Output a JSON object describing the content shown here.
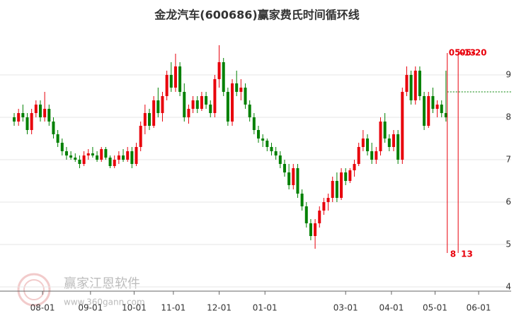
{
  "chart_data": {
    "type": "candlestick",
    "title": "金龙汽车(600686)赢家费氏时间循环线",
    "up_color": "#e8000b",
    "down_color": "#008000",
    "xlim": [
      -3.25,
      114.6
    ],
    "ylim": [
      3.9,
      10.1
    ],
    "yticks": [
      4,
      5,
      6,
      7,
      8,
      9
    ],
    "grid": true,
    "xticks": [
      {
        "value": 6.5,
        "label": "08-01"
      },
      {
        "value": 17.5,
        "label": "09-01"
      },
      {
        "value": 27.5,
        "label": "10-01"
      },
      {
        "value": 36.5,
        "label": "11-01"
      },
      {
        "value": 47,
        "label": "12-01"
      },
      {
        "value": 57.5,
        "label": "01-01"
      },
      {
        "value": 76,
        "label": "03-01"
      },
      {
        "value": 86.5,
        "label": "04-01"
      },
      {
        "value": 96.5,
        "label": "05-01"
      },
      {
        "value": 106.5,
        "label": "06-01"
      }
    ],
    "ohlc": [
      [
        8.0,
        8.1,
        7.8,
        7.9
      ],
      [
        7.9,
        8.2,
        7.8,
        8.1
      ],
      [
        8.1,
        8.3,
        7.9,
        8.0
      ],
      [
        8.0,
        8.1,
        7.6,
        7.7
      ],
      [
        7.7,
        8.2,
        7.6,
        8.1
      ],
      [
        8.1,
        8.4,
        8.0,
        8.3
      ],
      [
        8.3,
        8.4,
        7.9,
        8.0
      ],
      [
        8.0,
        8.6,
        7.9,
        8.2
      ],
      [
        8.2,
        8.3,
        7.8,
        7.9
      ],
      [
        7.9,
        8.0,
        7.5,
        7.6
      ],
      [
        7.6,
        7.7,
        7.3,
        7.4
      ],
      [
        7.4,
        7.5,
        7.1,
        7.2
      ],
      [
        7.2,
        7.3,
        7.0,
        7.1
      ],
      [
        7.1,
        7.2,
        7.0,
        7.05
      ],
      [
        7.05,
        7.15,
        6.95,
        7.0
      ],
      [
        7.0,
        7.1,
        6.8,
        6.9
      ],
      [
        6.9,
        7.2,
        6.85,
        7.1
      ],
      [
        7.1,
        7.25,
        7.0,
        7.15
      ],
      [
        7.15,
        7.3,
        7.05,
        7.1
      ],
      [
        7.1,
        7.2,
        6.95,
        7.0
      ],
      [
        7.0,
        7.3,
        6.95,
        7.25
      ],
      [
        7.25,
        7.3,
        7.0,
        7.05
      ],
      [
        7.05,
        7.1,
        6.8,
        6.85
      ],
      [
        6.85,
        7.1,
        6.8,
        7.0
      ],
      [
        7.0,
        7.2,
        6.9,
        7.1
      ],
      [
        7.1,
        7.25,
        6.95,
        7.0
      ],
      [
        7.0,
        7.3,
        6.95,
        7.2
      ],
      [
        7.2,
        7.3,
        6.8,
        6.9
      ],
      [
        6.9,
        7.4,
        6.85,
        7.3
      ],
      [
        7.3,
        7.9,
        7.2,
        7.8
      ],
      [
        7.8,
        8.3,
        7.6,
        8.1
      ],
      [
        8.1,
        8.2,
        7.7,
        7.8
      ],
      [
        7.8,
        8.5,
        7.75,
        8.4
      ],
      [
        8.4,
        8.7,
        8.0,
        8.1
      ],
      [
        8.1,
        8.6,
        7.9,
        8.5
      ],
      [
        8.5,
        9.1,
        8.4,
        9.0
      ],
      [
        9.0,
        9.3,
        8.6,
        8.7
      ],
      [
        8.7,
        9.5,
        8.6,
        9.2
      ],
      [
        9.2,
        9.3,
        8.5,
        8.6
      ],
      [
        8.6,
        8.8,
        7.9,
        8.0
      ],
      [
        8.0,
        8.3,
        7.85,
        8.2
      ],
      [
        8.2,
        8.5,
        8.1,
        8.4
      ],
      [
        8.4,
        8.5,
        8.1,
        8.2
      ],
      [
        8.2,
        8.6,
        8.15,
        8.5
      ],
      [
        8.5,
        8.6,
        8.2,
        8.3
      ],
      [
        8.3,
        8.4,
        8.0,
        8.1
      ],
      [
        8.1,
        9.0,
        8.0,
        8.9
      ],
      [
        8.9,
        9.7,
        8.7,
        9.3
      ],
      [
        9.3,
        9.4,
        8.5,
        8.6
      ],
      [
        8.6,
        8.7,
        7.8,
        7.9
      ],
      [
        7.9,
        8.9,
        7.8,
        8.8
      ],
      [
        8.8,
        9.1,
        8.5,
        8.6
      ],
      [
        8.6,
        8.9,
        8.4,
        8.7
      ],
      [
        8.7,
        8.8,
        8.2,
        8.3
      ],
      [
        8.3,
        8.4,
        7.9,
        8.0
      ],
      [
        8.0,
        8.1,
        7.6,
        7.7
      ],
      [
        7.7,
        7.8,
        7.4,
        7.5
      ],
      [
        7.5,
        7.6,
        7.3,
        7.45
      ],
      [
        7.45,
        7.5,
        7.2,
        7.3
      ],
      [
        7.3,
        7.4,
        7.1,
        7.2
      ],
      [
        7.2,
        7.3,
        7.0,
        7.1
      ],
      [
        7.1,
        7.2,
        6.8,
        6.9
      ],
      [
        6.9,
        7.0,
        6.6,
        6.7
      ],
      [
        6.7,
        6.9,
        6.3,
        6.4
      ],
      [
        6.4,
        6.9,
        6.3,
        6.8
      ],
      [
        6.8,
        6.9,
        6.1,
        6.2
      ],
      [
        6.2,
        6.3,
        5.8,
        5.9
      ],
      [
        5.9,
        6.0,
        5.4,
        5.5
      ],
      [
        5.5,
        5.6,
        5.1,
        5.2
      ],
      [
        5.2,
        5.6,
        4.9,
        5.5
      ],
      [
        5.5,
        5.9,
        5.4,
        5.8
      ],
      [
        5.8,
        6.1,
        5.7,
        6.0
      ],
      [
        6.0,
        6.2,
        5.8,
        6.1
      ],
      [
        6.1,
        6.6,
        6.0,
        6.5
      ],
      [
        6.5,
        6.7,
        6.0,
        6.1
      ],
      [
        6.1,
        6.8,
        6.05,
        6.7
      ],
      [
        6.7,
        6.8,
        6.4,
        6.5
      ],
      [
        6.5,
        6.8,
        6.45,
        6.75
      ],
      [
        6.75,
        7.0,
        6.6,
        6.9
      ],
      [
        6.9,
        7.4,
        6.85,
        7.3
      ],
      [
        7.3,
        7.7,
        7.2,
        7.5
      ],
      [
        7.5,
        7.6,
        7.1,
        7.2
      ],
      [
        7.2,
        7.4,
        6.9,
        7.0
      ],
      [
        7.0,
        7.3,
        6.9,
        7.2
      ],
      [
        7.2,
        8.0,
        7.1,
        7.9
      ],
      [
        7.9,
        8.1,
        7.4,
        7.5
      ],
      [
        7.5,
        7.6,
        7.2,
        7.3
      ],
      [
        7.3,
        7.7,
        7.2,
        7.6
      ],
      [
        7.6,
        7.7,
        6.9,
        7.0
      ],
      [
        7.0,
        8.7,
        6.9,
        8.6
      ],
      [
        8.6,
        9.2,
        8.5,
        9.0
      ],
      [
        9.0,
        9.1,
        8.3,
        8.4
      ],
      [
        8.4,
        9.2,
        8.3,
        9.1
      ],
      [
        9.1,
        9.2,
        8.4,
        8.5
      ],
      [
        8.5,
        8.6,
        7.7,
        7.8
      ],
      [
        7.8,
        8.6,
        7.75,
        8.5
      ],
      [
        8.5,
        8.7,
        8.1,
        8.2
      ],
      [
        8.2,
        8.4,
        8.0,
        8.3
      ],
      [
        8.3,
        8.4,
        8.0,
        8.1
      ],
      [
        8.1,
        9.1,
        7.9,
        8.0
      ]
    ],
    "cycle_lines": [
      {
        "x": 99.3,
        "top_label": "05-13",
        "bottom_label": "8"
      },
      {
        "x": 101.8,
        "top_label": "05-20",
        "bottom_label": "13"
      }
    ],
    "hline": {
      "value": 8.6,
      "color": "#008000"
    },
    "watermark": {
      "name": "赢家江恩软件",
      "url": "www.360gann.com"
    }
  }
}
